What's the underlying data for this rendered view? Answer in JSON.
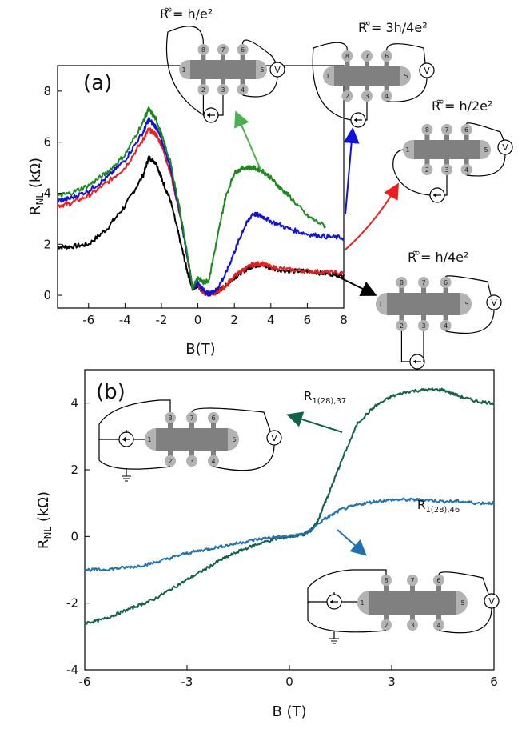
{
  "colors": {
    "black": "#000000",
    "red": "#ee1c1c",
    "blue": "#1010e0",
    "green": "#1a8a1a",
    "teal_dark": "#12624a",
    "teal_blue": "#1f72b0",
    "device": "#808080",
    "contact": "#b3b3b3"
  },
  "chart_data": [
    {
      "type": "line",
      "panel": "(a)",
      "xlabel": "B(T)",
      "ylabel_main": "R",
      "ylabel_sub": "NL",
      "ylabel_unit": " (kΩ)",
      "xlim": [
        -7.7,
        8
      ],
      "ylim": [
        -0.5,
        9
      ],
      "xticks": [
        -6,
        -4,
        -2,
        0,
        2,
        4,
        6,
        8
      ],
      "xtick_labels": [
        "-6",
        "-4",
        "-2",
        "0",
        "2",
        "4",
        "6",
        "8"
      ],
      "yticks": [
        0,
        2,
        4,
        6,
        8
      ],
      "ytick_labels": [
        "0",
        "2",
        "4",
        "6",
        "8"
      ],
      "series": [
        {
          "color": "black",
          "x": [
            -7.7,
            -7,
            -6,
            -5,
            -4,
            -3,
            -2.7,
            -2.3,
            -2,
            -1.5,
            -1,
            -0.6,
            -0.3,
            0,
            0.3,
            0.6,
            1,
            1.5,
            2,
            2.5,
            3,
            3.5,
            4,
            5,
            6,
            7,
            8
          ],
          "y": [
            1.9,
            1.9,
            2.0,
            2.6,
            3.5,
            4.7,
            5.4,
            5.2,
            4.6,
            3.7,
            2.2,
            1.0,
            0.25,
            0.4,
            0.1,
            0.05,
            0.1,
            0.35,
            0.7,
            0.95,
            1.15,
            1.2,
            1.05,
            0.95,
            0.95,
            0.85,
            0.8
          ]
        },
        {
          "color": "red",
          "x": [
            -7.7,
            -7,
            -6,
            -5,
            -4,
            -3,
            -2.7,
            -2.3,
            -2,
            -1.5,
            -1,
            -0.6,
            -0.3,
            0,
            0.3,
            0.6,
            1,
            1.5,
            2,
            2.5,
            3,
            3.5,
            4,
            5,
            6,
            7,
            8
          ],
          "y": [
            3.5,
            3.6,
            3.9,
            4.4,
            5.0,
            6.1,
            6.5,
            6.3,
            5.9,
            4.8,
            3.2,
            1.6,
            0.3,
            0.45,
            0.1,
            0.05,
            0.1,
            0.35,
            0.75,
            1.0,
            1.2,
            1.25,
            1.1,
            1.0,
            0.95,
            0.9,
            0.85
          ]
        },
        {
          "color": "blue",
          "x": [
            -7.7,
            -7,
            -6,
            -5,
            -4,
            -3,
            -2.7,
            -2.3,
            -2,
            -1.5,
            -1,
            -0.6,
            -0.3,
            0,
            0.3,
            0.6,
            1,
            1.5,
            2,
            2.5,
            3,
            3.5,
            4,
            5,
            6,
            7,
            8
          ],
          "y": [
            3.7,
            3.8,
            4.1,
            4.6,
            5.3,
            6.4,
            6.9,
            6.6,
            6.1,
            5.0,
            3.3,
            1.6,
            0.3,
            0.5,
            0.2,
            0.05,
            0.2,
            0.8,
            1.7,
            2.6,
            3.2,
            3.1,
            2.9,
            2.6,
            2.4,
            2.3,
            2.25
          ]
        },
        {
          "color": "green",
          "x": [
            -7.7,
            -7,
            -6,
            -5,
            -4,
            -3,
            -2.7,
            -2.3,
            -2,
            -1.5,
            -1,
            -0.6,
            -0.3,
            0,
            0.3,
            0.6,
            1,
            1.5,
            2,
            2.5,
            3,
            3.5,
            4,
            4.5,
            5,
            6,
            7
          ],
          "y": [
            3.9,
            4.0,
            4.3,
            4.8,
            5.5,
            6.8,
            7.3,
            6.9,
            6.3,
            5.2,
            3.4,
            1.7,
            0.3,
            0.7,
            0.5,
            0.6,
            2.0,
            3.8,
            4.8,
            5.0,
            5.0,
            4.9,
            4.6,
            4.2,
            3.9,
            3.1,
            2.7
          ]
        }
      ]
    },
    {
      "type": "line",
      "panel": "(b)",
      "xlabel": "B (T)",
      "ylabel_main": "R",
      "ylabel_sub": "NL",
      "ylabel_unit": " (kΩ)",
      "xlim": [
        -6,
        6
      ],
      "ylim": [
        -4,
        5
      ],
      "xticks": [
        -6,
        -3,
        0,
        3,
        6
      ],
      "xtick_labels": [
        "-6",
        "-3",
        "0",
        "3",
        "6"
      ],
      "yticks": [
        -4,
        -2,
        0,
        2,
        4
      ],
      "ytick_labels": [
        "-4",
        "-2",
        "0",
        "2",
        "4"
      ],
      "series": [
        {
          "name_main": "R",
          "name_sub": "1(28),37",
          "color": "teal_dark",
          "x": [
            -6,
            -5.5,
            -5,
            -4.5,
            -4,
            -3.5,
            -3,
            -2.5,
            -2,
            -1.5,
            -1,
            -0.5,
            0,
            0.4,
            0.6,
            0.8,
            1.0,
            1.2,
            1.5,
            2,
            2.5,
            3,
            3.5,
            4,
            4.5,
            5,
            5.5,
            6
          ],
          "y": [
            -2.6,
            -2.5,
            -2.3,
            -2.1,
            -1.9,
            -1.6,
            -1.3,
            -1.0,
            -0.7,
            -0.45,
            -0.25,
            -0.1,
            0,
            0.05,
            0.15,
            0.4,
            0.9,
            1.4,
            2.2,
            3.4,
            3.9,
            4.2,
            4.35,
            4.4,
            4.4,
            4.2,
            4.05,
            4.0
          ]
        },
        {
          "name_main": "R",
          "name_sub": "1(28),46",
          "color": "teal_blue",
          "x": [
            -6,
            -5.5,
            -5,
            -4.5,
            -4,
            -3.5,
            -3,
            -2.5,
            -2,
            -1.5,
            -1,
            -0.5,
            0,
            0.5,
            1,
            1.5,
            2,
            2.5,
            3,
            3.5,
            4,
            4.5,
            5,
            5.5,
            6
          ],
          "y": [
            -1.0,
            -1.0,
            -0.95,
            -0.9,
            -0.8,
            -0.65,
            -0.5,
            -0.4,
            -0.3,
            -0.2,
            -0.1,
            -0.02,
            0,
            0.1,
            0.5,
            0.8,
            0.95,
            1.05,
            1.1,
            1.1,
            1.1,
            1.05,
            1.05,
            1.0,
            1.0
          ]
        }
      ]
    }
  ],
  "insets": {
    "a1": {
      "r": "R",
      "sup": "∞",
      "eq": "= h/e²"
    },
    "a2": {
      "r": "R",
      "sup": "∞",
      "eq": "= 3h/4e²"
    },
    "a3": {
      "r": "R",
      "sup": "∞",
      "eq": "= h/2e²"
    },
    "a4": {
      "r": "R",
      "sup": "∞",
      "eq": "= h/4e²"
    }
  },
  "device": {
    "contact_labels": {
      "c1": "1",
      "c2": "2",
      "c3": "3",
      "c4": "4",
      "c5": "5",
      "c6": "6",
      "c7": "7",
      "c8": "8"
    },
    "voltmeter_label": "V"
  }
}
